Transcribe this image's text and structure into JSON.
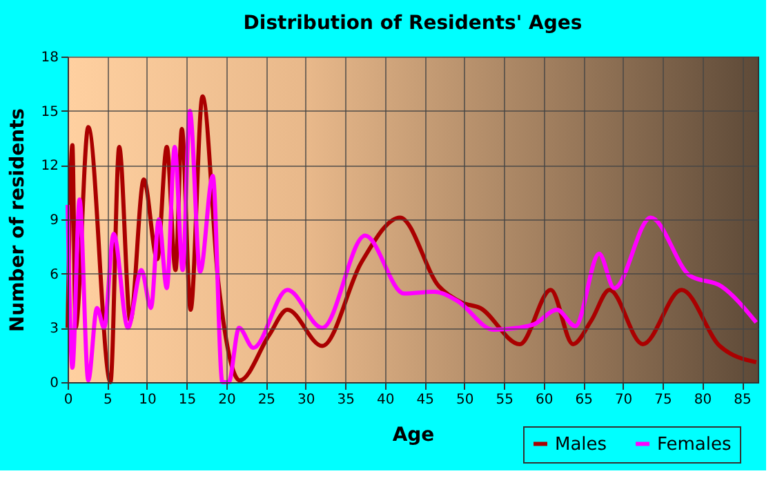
{
  "chart_data": {
    "type": "line",
    "title": "Distribution of Residents' Ages",
    "xlabel": "Age",
    "ylabel": "Number of residents",
    "xlim": [
      0,
      87
    ],
    "xticks": [
      0,
      5,
      10,
      15,
      20,
      25,
      30,
      35,
      40,
      45,
      50,
      55,
      60,
      65,
      70,
      75,
      80,
      85
    ],
    "ylim": [
      0,
      18
    ],
    "yticks": [
      0,
      3,
      6,
      9,
      12,
      15,
      18
    ],
    "grid": true,
    "legend": "bottom right",
    "series": [
      {
        "name": "Males",
        "color": "#aa0000",
        "x": [
          0,
          0.6,
          1.0,
          2.6,
          5.4,
          6.5,
          7.9,
          9.6,
          11.3,
          12.5,
          13.6,
          14.4,
          15.5,
          17.0,
          19.0,
          21.7,
          25.4,
          27.7,
          32.1,
          37.0,
          41.9,
          46.8,
          49.7,
          52.0,
          57.0,
          60.9,
          63.7,
          66.0,
          68.3,
          72.5,
          77.4,
          82.2,
          86.8
        ],
        "values": [
          3.0,
          13.1,
          3.0,
          14.1,
          0,
          13.0,
          3.4,
          11.2,
          6.8,
          13.0,
          6.2,
          14.0,
          4.0,
          15.8,
          5.5,
          0.1,
          2.6,
          4.0,
          2.0,
          6.6,
          9.1,
          5.3,
          4.4,
          4.1,
          2.1,
          5.1,
          2.1,
          3.4,
          5.1,
          2.1,
          5.1,
          2.0,
          1.1
        ]
      },
      {
        "name": "Females",
        "color": "#ff00ff",
        "x": [
          0,
          0.6,
          1.5,
          2.6,
          3.7,
          4.6,
          5.8,
          7.6,
          9.3,
          10.5,
          11.5,
          12.5,
          13.5,
          14.5,
          15.4,
          16.7,
          18.3,
          19.5,
          20.3,
          21.6,
          23.4,
          27.7,
          32.1,
          37.5,
          42.4,
          46.2,
          49.1,
          53.7,
          56.7,
          58.8,
          61.7,
          64.0,
          67.0,
          68.9,
          73.5,
          78.4,
          82.4,
          86.8
        ],
        "values": [
          9.8,
          0.8,
          10.1,
          0.1,
          4.1,
          3.0,
          8.2,
          3.0,
          6.2,
          4.1,
          9.0,
          5.2,
          13.0,
          6.2,
          15.0,
          6.1,
          11.4,
          0,
          0,
          3.0,
          1.9,
          5.1,
          3.0,
          8.1,
          4.9,
          5.0,
          4.5,
          2.9,
          3.0,
          3.2,
          4.0,
          3.1,
          7.1,
          5.2,
          9.1,
          5.9,
          5.3,
          3.3
        ]
      }
    ]
  }
}
